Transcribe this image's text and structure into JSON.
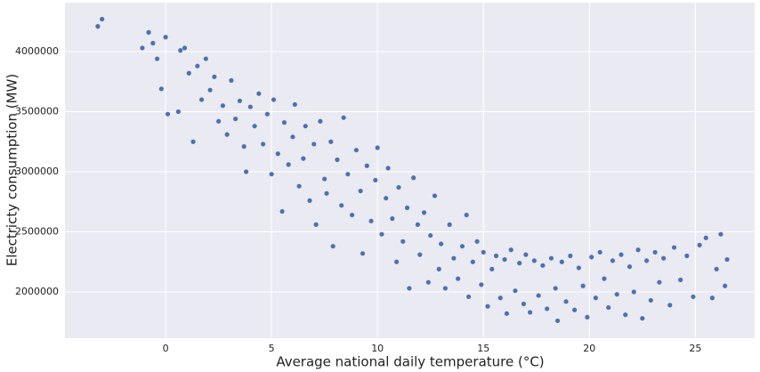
{
  "chart_data": {
    "type": "scatter",
    "xlabel": "Average national daily temperature (°C)",
    "ylabel": "Electricty consumption (MW)",
    "color": "#4c72b0",
    "grid": true,
    "xlim": [
      -4.75,
      27.8
    ],
    "xticks": [
      0,
      5,
      10,
      15,
      20,
      25
    ],
    "ylim": [
      1615000,
      4407000
    ],
    "yticks": [
      2000000,
      2500000,
      3000000,
      3500000,
      4000000
    ],
    "x": [
      -3.2,
      -3.0,
      -1.1,
      -0.8,
      -0.6,
      -0.4,
      -0.2,
      0.0,
      0.1,
      0.6,
      0.7,
      0.9,
      1.1,
      1.3,
      1.5,
      1.7,
      1.9,
      2.1,
      2.3,
      2.5,
      2.7,
      2.9,
      3.1,
      3.3,
      3.5,
      3.7,
      3.8,
      4.0,
      4.2,
      4.4,
      4.6,
      4.8,
      5.0,
      5.1,
      5.3,
      5.5,
      5.6,
      5.8,
      6.0,
      6.1,
      6.3,
      6.5,
      6.6,
      6.8,
      7.0,
      7.1,
      7.3,
      7.5,
      7.6,
      7.8,
      7.9,
      8.1,
      8.3,
      8.4,
      8.6,
      8.8,
      9.0,
      9.2,
      9.3,
      9.5,
      9.7,
      9.9,
      10.0,
      10.2,
      10.4,
      10.5,
      10.7,
      10.9,
      11.0,
      11.2,
      11.4,
      11.5,
      11.7,
      11.9,
      12.0,
      12.2,
      12.4,
      12.5,
      12.7,
      12.9,
      13.0,
      13.2,
      13.4,
      13.6,
      13.8,
      14.0,
      14.2,
      14.3,
      14.5,
      14.7,
      14.9,
      15.0,
      15.2,
      15.4,
      15.6,
      15.8,
      16.0,
      16.1,
      16.3,
      16.5,
      16.7,
      16.9,
      17.0,
      17.2,
      17.4,
      17.6,
      17.8,
      18.0,
      18.2,
      18.4,
      18.5,
      18.7,
      18.9,
      19.1,
      19.3,
      19.5,
      19.7,
      19.9,
      20.1,
      20.3,
      20.5,
      20.7,
      20.9,
      21.1,
      21.3,
      21.5,
      21.7,
      21.9,
      22.1,
      22.3,
      22.5,
      22.7,
      22.9,
      23.1,
      23.3,
      23.5,
      23.8,
      24.0,
      24.3,
      24.6,
      24.9,
      25.2,
      25.5,
      25.8,
      26.0,
      26.2,
      26.4,
      26.5
    ],
    "y": [
      4210000,
      4270000,
      4030000,
      4160000,
      4070000,
      3940000,
      3690000,
      4120000,
      3480000,
      3500000,
      4010000,
      4030000,
      3820000,
      3250000,
      3880000,
      3600000,
      3940000,
      3680000,
      3790000,
      3420000,
      3550000,
      3310000,
      3760000,
      3440000,
      3590000,
      3210000,
      3000000,
      3540000,
      3380000,
      3650000,
      3230000,
      3480000,
      2980000,
      3600000,
      3150000,
      2670000,
      3410000,
      3060000,
      3290000,
      3560000,
      2880000,
      3110000,
      3380000,
      2760000,
      3230000,
      2560000,
      3420000,
      2940000,
      2820000,
      3250000,
      2380000,
      3100000,
      2720000,
      3450000,
      2980000,
      2640000,
      3180000,
      2840000,
      2320000,
      3050000,
      2590000,
      2930000,
      3200000,
      2480000,
      2780000,
      3030000,
      2610000,
      2250000,
      2870000,
      2420000,
      2700000,
      2030000,
      2950000,
      2560000,
      2310000,
      2660000,
      2080000,
      2470000,
      2800000,
      2190000,
      2400000,
      2030000,
      2560000,
      2280000,
      2110000,
      2380000,
      2640000,
      1960000,
      2250000,
      2420000,
      2060000,
      2330000,
      1880000,
      2190000,
      2300000,
      1950000,
      2270000,
      1820000,
      2350000,
      2010000,
      2240000,
      1900000,
      2310000,
      1830000,
      2260000,
      1970000,
      2220000,
      1860000,
      2280000,
      2030000,
      1760000,
      2250000,
      1920000,
      2300000,
      1850000,
      2200000,
      2050000,
      1790000,
      2290000,
      1950000,
      2330000,
      2110000,
      1870000,
      2260000,
      1980000,
      2310000,
      1810000,
      2210000,
      2000000,
      2350000,
      1780000,
      2260000,
      1930000,
      2330000,
      2080000,
      2280000,
      1890000,
      2370000,
      2100000,
      2300000,
      1960000,
      2390000,
      2450000,
      1950000,
      2190000,
      2480000,
      2050000,
      2270000
    ]
  }
}
